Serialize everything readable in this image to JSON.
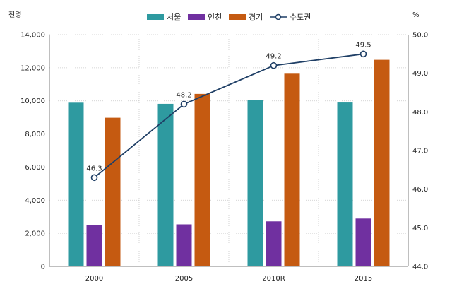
{
  "chart_data": {
    "type": "bar",
    "title": "",
    "categories": [
      "2000",
      "2005",
      "2010R",
      "2015"
    ],
    "left_axis": {
      "unit": "천명",
      "ylim": [
        0,
        14000
      ],
      "ticks": [
        0,
        2000,
        4000,
        6000,
        8000,
        10000,
        12000,
        14000
      ],
      "tick_labels": [
        "0",
        "2,000",
        "4,000",
        "6,000",
        "8,000",
        "10,000",
        "12,000",
        "14,000"
      ]
    },
    "right_axis": {
      "unit": "%",
      "ylim": [
        44.0,
        50.0
      ],
      "ticks": [
        44.0,
        45.0,
        46.0,
        47.0,
        48.0,
        49.0,
        50.0
      ],
      "tick_labels": [
        "44.0",
        "45.0",
        "46.0",
        "47.0",
        "48.0",
        "49.0",
        "50.0"
      ]
    },
    "series": [
      {
        "name": "서울",
        "type": "bar",
        "axis": "left",
        "color": "#2e9aa0",
        "values": [
          9890,
          9820,
          10050,
          9900
        ]
      },
      {
        "name": "인천",
        "type": "bar",
        "axis": "left",
        "color": "#7030a0",
        "values": [
          2480,
          2540,
          2720,
          2890
        ]
      },
      {
        "name": "경기",
        "type": "bar",
        "axis": "left",
        "color": "#c55a11",
        "values": [
          8980,
          10420,
          11640,
          12480
        ]
      },
      {
        "name": "수도권",
        "type": "line",
        "axis": "right",
        "color": "#1f3f66",
        "values": [
          46.3,
          48.2,
          49.2,
          49.5
        ],
        "labels": [
          "46.3",
          "48.2",
          "49.2",
          "49.5"
        ]
      }
    ],
    "grid": true,
    "legend_position": "top"
  }
}
